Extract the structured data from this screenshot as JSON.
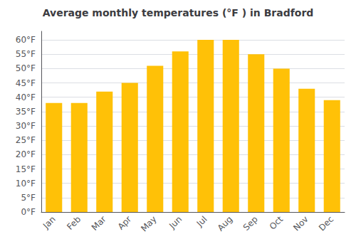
{
  "chart_data": {
    "type": "bar",
    "title": "Average monthly temperatures (°F ) in Bradford",
    "categories": [
      "Jan",
      "Feb",
      "Mar",
      "Apr",
      "May",
      "Jun",
      "Jul",
      "Aug",
      "Sep",
      "Oct",
      "Nov",
      "Dec"
    ],
    "values": [
      38,
      38,
      42,
      45,
      51,
      56,
      60,
      60,
      55,
      50,
      43,
      39
    ],
    "color": "#FFC107",
    "ylim": [
      0,
      63
    ],
    "yticks": [
      {
        "value": 0,
        "label": "0°F"
      },
      {
        "value": 5,
        "label": "5°F"
      },
      {
        "value": 10,
        "label": "10°F"
      },
      {
        "value": 15,
        "label": "15°F"
      },
      {
        "value": 20,
        "label": "20°F"
      },
      {
        "value": 25,
        "label": "25°F"
      },
      {
        "value": 30,
        "label": "30°F"
      },
      {
        "value": 35,
        "label": "35°F"
      },
      {
        "value": 40,
        "label": "40°F"
      },
      {
        "value": 45,
        "label": "45°F"
      },
      {
        "value": 50,
        "label": "50°F"
      },
      {
        "value": 55,
        "label": "55°F"
      },
      {
        "value": 60,
        "label": "60°F"
      }
    ],
    "grid": true
  }
}
